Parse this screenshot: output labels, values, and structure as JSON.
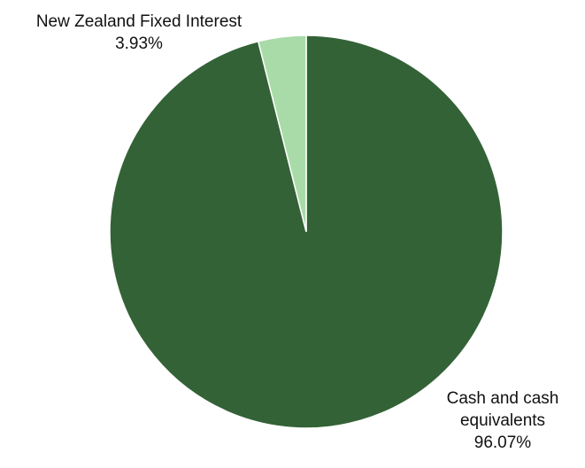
{
  "chart_data": {
    "type": "pie",
    "start_angle_deg": 0,
    "direction": "clockwise",
    "slices": [
      {
        "name": "Cash and cash equivalents",
        "label_lines": [
          "Cash and cash",
          "equivalents"
        ],
        "value": 96.07,
        "value_label": "96.07%",
        "color": "#336236"
      },
      {
        "name": "New Zealand Fixed Interest",
        "label_lines": [
          "New Zealand Fixed Interest"
        ],
        "value": 3.93,
        "value_label": "3.93%",
        "color": "#a9dba9"
      }
    ],
    "slice_border_color": "#ffffff",
    "legend": "none",
    "data_labels": "outside"
  }
}
